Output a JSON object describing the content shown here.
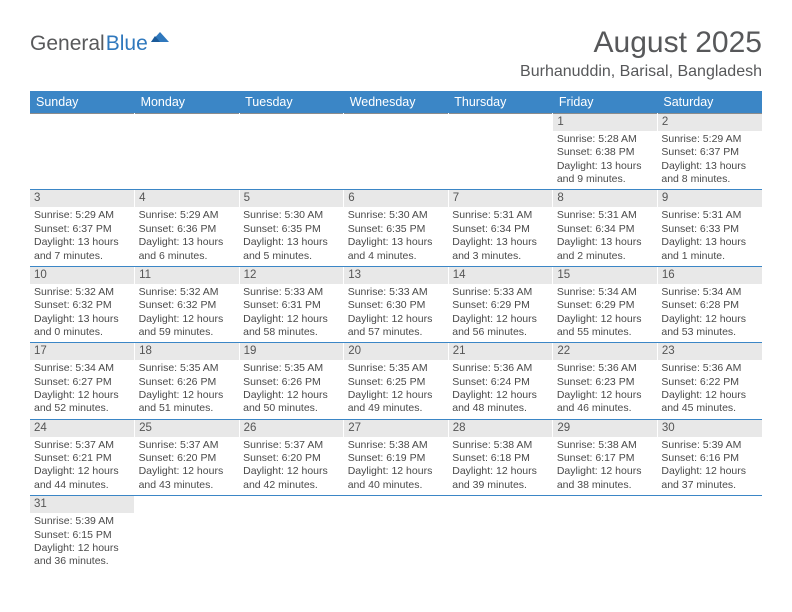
{
  "logo": {
    "text1": "General",
    "text2": "Blue"
  },
  "title": "August 2025",
  "location": "Burhanuddin, Barisal, Bangladesh",
  "colors": {
    "header_bg": "#3b86c6",
    "header_text": "#ffffff",
    "daynum_bg": "#e8e8e8",
    "row_divider": "#3b86c6",
    "body_text": "#4a4a4a",
    "title_text": "#57585a",
    "logo_gray": "#58595b",
    "logo_blue": "#2f78bd"
  },
  "weekdays": [
    "Sunday",
    "Monday",
    "Tuesday",
    "Wednesday",
    "Thursday",
    "Friday",
    "Saturday"
  ],
  "weeks": [
    [
      null,
      null,
      null,
      null,
      null,
      {
        "n": "1",
        "sr": "5:28 AM",
        "ss": "6:38 PM",
        "dl": "13 hours and 9 minutes."
      },
      {
        "n": "2",
        "sr": "5:29 AM",
        "ss": "6:37 PM",
        "dl": "13 hours and 8 minutes."
      }
    ],
    [
      {
        "n": "3",
        "sr": "5:29 AM",
        "ss": "6:37 PM",
        "dl": "13 hours and 7 minutes."
      },
      {
        "n": "4",
        "sr": "5:29 AM",
        "ss": "6:36 PM",
        "dl": "13 hours and 6 minutes."
      },
      {
        "n": "5",
        "sr": "5:30 AM",
        "ss": "6:35 PM",
        "dl": "13 hours and 5 minutes."
      },
      {
        "n": "6",
        "sr": "5:30 AM",
        "ss": "6:35 PM",
        "dl": "13 hours and 4 minutes."
      },
      {
        "n": "7",
        "sr": "5:31 AM",
        "ss": "6:34 PM",
        "dl": "13 hours and 3 minutes."
      },
      {
        "n": "8",
        "sr": "5:31 AM",
        "ss": "6:34 PM",
        "dl": "13 hours and 2 minutes."
      },
      {
        "n": "9",
        "sr": "5:31 AM",
        "ss": "6:33 PM",
        "dl": "13 hours and 1 minute."
      }
    ],
    [
      {
        "n": "10",
        "sr": "5:32 AM",
        "ss": "6:32 PM",
        "dl": "13 hours and 0 minutes."
      },
      {
        "n": "11",
        "sr": "5:32 AM",
        "ss": "6:32 PM",
        "dl": "12 hours and 59 minutes."
      },
      {
        "n": "12",
        "sr": "5:33 AM",
        "ss": "6:31 PM",
        "dl": "12 hours and 58 minutes."
      },
      {
        "n": "13",
        "sr": "5:33 AM",
        "ss": "6:30 PM",
        "dl": "12 hours and 57 minutes."
      },
      {
        "n": "14",
        "sr": "5:33 AM",
        "ss": "6:29 PM",
        "dl": "12 hours and 56 minutes."
      },
      {
        "n": "15",
        "sr": "5:34 AM",
        "ss": "6:29 PM",
        "dl": "12 hours and 55 minutes."
      },
      {
        "n": "16",
        "sr": "5:34 AM",
        "ss": "6:28 PM",
        "dl": "12 hours and 53 minutes."
      }
    ],
    [
      {
        "n": "17",
        "sr": "5:34 AM",
        "ss": "6:27 PM",
        "dl": "12 hours and 52 minutes."
      },
      {
        "n": "18",
        "sr": "5:35 AM",
        "ss": "6:26 PM",
        "dl": "12 hours and 51 minutes."
      },
      {
        "n": "19",
        "sr": "5:35 AM",
        "ss": "6:26 PM",
        "dl": "12 hours and 50 minutes."
      },
      {
        "n": "20",
        "sr": "5:35 AM",
        "ss": "6:25 PM",
        "dl": "12 hours and 49 minutes."
      },
      {
        "n": "21",
        "sr": "5:36 AM",
        "ss": "6:24 PM",
        "dl": "12 hours and 48 minutes."
      },
      {
        "n": "22",
        "sr": "5:36 AM",
        "ss": "6:23 PM",
        "dl": "12 hours and 46 minutes."
      },
      {
        "n": "23",
        "sr": "5:36 AM",
        "ss": "6:22 PM",
        "dl": "12 hours and 45 minutes."
      }
    ],
    [
      {
        "n": "24",
        "sr": "5:37 AM",
        "ss": "6:21 PM",
        "dl": "12 hours and 44 minutes."
      },
      {
        "n": "25",
        "sr": "5:37 AM",
        "ss": "6:20 PM",
        "dl": "12 hours and 43 minutes."
      },
      {
        "n": "26",
        "sr": "5:37 AM",
        "ss": "6:20 PM",
        "dl": "12 hours and 42 minutes."
      },
      {
        "n": "27",
        "sr": "5:38 AM",
        "ss": "6:19 PM",
        "dl": "12 hours and 40 minutes."
      },
      {
        "n": "28",
        "sr": "5:38 AM",
        "ss": "6:18 PM",
        "dl": "12 hours and 39 minutes."
      },
      {
        "n": "29",
        "sr": "5:38 AM",
        "ss": "6:17 PM",
        "dl": "12 hours and 38 minutes."
      },
      {
        "n": "30",
        "sr": "5:39 AM",
        "ss": "6:16 PM",
        "dl": "12 hours and 37 minutes."
      }
    ],
    [
      {
        "n": "31",
        "sr": "5:39 AM",
        "ss": "6:15 PM",
        "dl": "12 hours and 36 minutes."
      },
      null,
      null,
      null,
      null,
      null,
      null
    ]
  ],
  "labels": {
    "sunrise": "Sunrise:",
    "sunset": "Sunset:",
    "daylight": "Daylight:"
  }
}
